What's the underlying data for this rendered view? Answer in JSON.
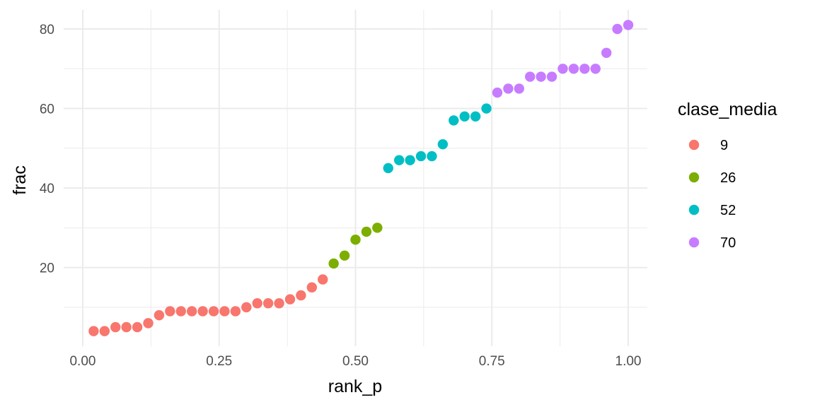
{
  "chart_data": {
    "type": "scatter",
    "title": "",
    "xlabel": "rank_p",
    "ylabel": "frac",
    "xlim": [
      -0.035,
      1.035
    ],
    "ylim": [
      0.2,
      84.8
    ],
    "x_ticks": [
      0.0,
      0.25,
      0.5,
      0.75,
      1.0
    ],
    "x_tick_labels": [
      "0.00",
      "0.25",
      "0.50",
      "0.75",
      "1.00"
    ],
    "x_minor_ticks": [
      0.125,
      0.375,
      0.625,
      0.875
    ],
    "y_ticks": [
      20,
      40,
      60,
      80
    ],
    "y_tick_labels": [
      "20",
      "40",
      "60",
      "80"
    ],
    "y_minor_ticks": [
      10,
      30,
      50,
      70
    ],
    "grid": true,
    "legend_position": "right",
    "legend": {
      "title": "clase_media",
      "entries": [
        {
          "label": "9",
          "color": "#F8766D"
        },
        {
          "label": "26",
          "color": "#7CAE00"
        },
        {
          "label": "52",
          "color": "#00BFC4"
        },
        {
          "label": "70",
          "color": "#C77CFF"
        }
      ]
    },
    "series": [
      {
        "name": "9",
        "color": "#F8766D",
        "x": [
          0.02,
          0.04,
          0.06,
          0.08,
          0.1,
          0.12,
          0.14,
          0.16,
          0.18,
          0.2,
          0.22,
          0.24,
          0.26,
          0.28,
          0.3,
          0.32,
          0.34,
          0.36,
          0.38,
          0.4,
          0.42,
          0.44
        ],
        "y": [
          4,
          4,
          5,
          5,
          5,
          6,
          8,
          9,
          9,
          9,
          9,
          9,
          9,
          9,
          10,
          11,
          11,
          11,
          12,
          13,
          15,
          17
        ]
      },
      {
        "name": "26",
        "color": "#7CAE00",
        "x": [
          0.46,
          0.48,
          0.5,
          0.52,
          0.54
        ],
        "y": [
          21,
          23,
          27,
          29,
          30
        ]
      },
      {
        "name": "52",
        "color": "#00BFC4",
        "x": [
          0.56,
          0.58,
          0.6,
          0.62,
          0.64,
          0.66,
          0.68,
          0.7,
          0.72,
          0.74
        ],
        "y": [
          45,
          47,
          47,
          48,
          48,
          51,
          57,
          58,
          58,
          60
        ]
      },
      {
        "name": "70",
        "color": "#C77CFF",
        "x": [
          0.76,
          0.78,
          0.8,
          0.82,
          0.84,
          0.86,
          0.88,
          0.9,
          0.92,
          0.94,
          0.96,
          0.98,
          1.0
        ],
        "y": [
          64,
          65,
          65,
          68,
          68,
          68,
          70,
          70,
          70,
          70,
          74,
          80,
          81
        ]
      }
    ]
  }
}
